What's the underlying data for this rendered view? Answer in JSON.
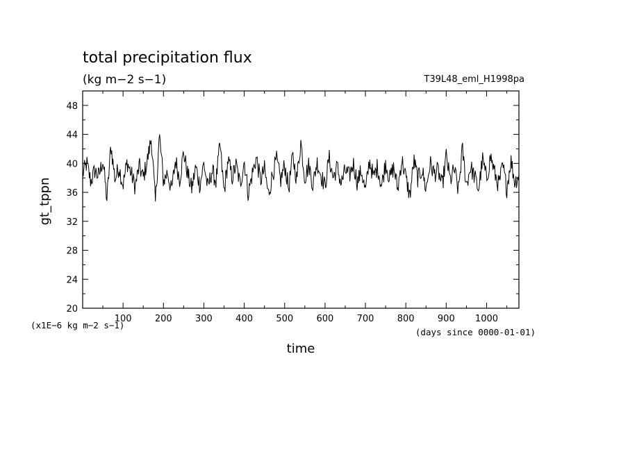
{
  "chart_data": {
    "type": "line",
    "title": "total precipitation flux",
    "subtitle": "(kg m−2 s−1)",
    "experiment": "T39L48_eml_H1998pa",
    "xlabel": "time",
    "ylabel": "gt_tppn",
    "x_unit_note": "(days since 0000-01-01)",
    "y_unit_note": "(x1E−6 kg m−2 s−1)",
    "xlim": [
      0,
      1080
    ],
    "ylim": [
      20,
      50
    ],
    "x_ticks": [
      100,
      200,
      300,
      400,
      500,
      600,
      700,
      800,
      900,
      1000
    ],
    "y_ticks": [
      20,
      24,
      28,
      32,
      36,
      40,
      44,
      48
    ],
    "x_tick_labels": [
      "100",
      "200",
      "300",
      "400",
      "500",
      "600",
      "700",
      "800",
      "900",
      "1000"
    ],
    "y_tick_labels": [
      "20",
      "24",
      "28",
      "32",
      "36",
      "40",
      "44",
      "48"
    ],
    "grid": false,
    "legend": "none",
    "line_color": "#000000",
    "series": [
      {
        "x": [
          0,
          10,
          20,
          30,
          40,
          50,
          60,
          70,
          80,
          90,
          100,
          110,
          120,
          130,
          140,
          150,
          160,
          170,
          180,
          190,
          200,
          210,
          220,
          230,
          240,
          250,
          260,
          270,
          280,
          290,
          300,
          310,
          320,
          330,
          340,
          350,
          360,
          370,
          380,
          390,
          400,
          410,
          420,
          430,
          440,
          450,
          460,
          470,
          480,
          490,
          500,
          510,
          520,
          530,
          540,
          550,
          560,
          570,
          580,
          590,
          600,
          610,
          620,
          630,
          640,
          650,
          660,
          670,
          680,
          690,
          700,
          710,
          720,
          730,
          740,
          750,
          760,
          770,
          780,
          790,
          800,
          810,
          820,
          830,
          840,
          850,
          860,
          870,
          880,
          890,
          900,
          910,
          920,
          930,
          940,
          950,
          960,
          970,
          980,
          990,
          1000,
          1010,
          1020,
          1030,
          1040,
          1050,
          1060,
          1070,
          1080
        ],
        "values": [
          38.5,
          40.0,
          37.5,
          39.0,
          38.2,
          40.5,
          35.0,
          42.5,
          37.8,
          39.5,
          37.0,
          40.2,
          38.6,
          36.8,
          39.6,
          38.0,
          40.4,
          43.5,
          34.5,
          44.0,
          37.5,
          38.8,
          36.2,
          40.5,
          37.8,
          41.5,
          38.5,
          36.5,
          39.5,
          37.0,
          40.0,
          36.5,
          39.0,
          37.5,
          42.6,
          36.0,
          40.5,
          38.0,
          39.8,
          37.0,
          40.4,
          35.8,
          38.6,
          40.8,
          37.6,
          39.2,
          35.6,
          38.5,
          40.5,
          37.6,
          39.8,
          36.5,
          41.0,
          37.8,
          43.0,
          38.0,
          39.8,
          37.0,
          40.2,
          38.4,
          36.8,
          40.8,
          38.0,
          39.5,
          37.2,
          39.0,
          38.2,
          40.0,
          37.4,
          39.0,
          36.0,
          40.5,
          38.0,
          39.6,
          36.8,
          40.2,
          37.8,
          39.5,
          36.4,
          40.6,
          38.0,
          35.5,
          40.4,
          37.8,
          39.2,
          36.4,
          40.0,
          38.6,
          39.0,
          36.8,
          41.0,
          37.6,
          39.2,
          36.2,
          42.0,
          37.0,
          39.5,
          38.2,
          36.4,
          40.5,
          37.8,
          41.0,
          38.6,
          37.0,
          39.6,
          36.5,
          40.5,
          37.4,
          38.5
        ]
      }
    ]
  }
}
